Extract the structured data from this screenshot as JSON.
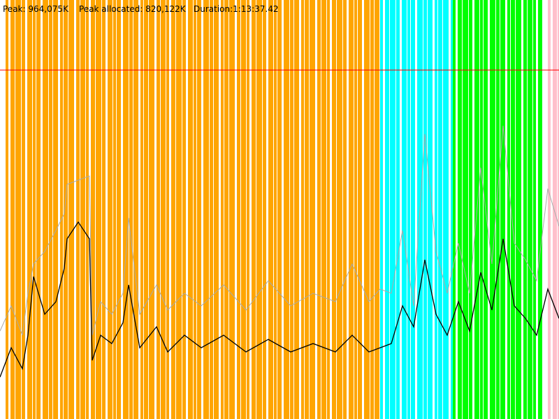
{
  "header": {
    "peak_text": "Peak: 964,075K",
    "peak_allocated_text": "Peak allocated: 820,122K",
    "duration_text": "Duration:1:13:37.42"
  },
  "colors": {
    "background": "#ffffff",
    "phase_orange": "#ffa500",
    "phase_cyan": "#00ffff",
    "phase_green": "#00ff00",
    "phase_pink": "#ffc0cb",
    "limit_line": "#ff0000",
    "heap_total_line": "#aaaaaa",
    "heap_used_line": "#000000"
  },
  "chart_data": {
    "type": "line",
    "title": "",
    "xlabel": "",
    "ylabel": "",
    "x_range": [
      0,
      1
    ],
    "y_range": [
      0,
      1
    ],
    "grid": false,
    "legend": "none",
    "limit_line": 0.833,
    "phases": [
      {
        "name": "orange",
        "start": 0.01,
        "end": 0.68
      },
      {
        "name": "cyan",
        "start": 0.68,
        "end": 0.81
      },
      {
        "name": "green",
        "start": 0.81,
        "end": 0.97
      },
      {
        "name": "pink",
        "start": 0.98,
        "end": 1.0
      }
    ],
    "series": [
      {
        "role": "total",
        "points": [
          [
            0.0,
            0.21
          ],
          [
            0.02,
            0.27
          ],
          [
            0.04,
            0.2
          ],
          [
            0.05,
            0.3
          ],
          [
            0.06,
            0.37
          ],
          [
            0.08,
            0.4
          ],
          [
            0.1,
            0.45
          ],
          [
            0.115,
            0.49
          ],
          [
            0.12,
            0.56
          ],
          [
            0.14,
            0.57
          ],
          [
            0.16,
            0.58
          ],
          [
            0.165,
            0.2
          ],
          [
            0.18,
            0.28
          ],
          [
            0.2,
            0.25
          ],
          [
            0.22,
            0.3
          ],
          [
            0.23,
            0.48
          ],
          [
            0.25,
            0.25
          ],
          [
            0.28,
            0.32
          ],
          [
            0.3,
            0.26
          ],
          [
            0.33,
            0.3
          ],
          [
            0.36,
            0.27
          ],
          [
            0.4,
            0.32
          ],
          [
            0.44,
            0.26
          ],
          [
            0.48,
            0.33
          ],
          [
            0.52,
            0.27
          ],
          [
            0.56,
            0.3
          ],
          [
            0.6,
            0.28
          ],
          [
            0.63,
            0.37
          ],
          [
            0.66,
            0.28
          ],
          [
            0.68,
            0.31
          ],
          [
            0.7,
            0.3
          ],
          [
            0.72,
            0.45
          ],
          [
            0.74,
            0.27
          ],
          [
            0.76,
            0.68
          ],
          [
            0.78,
            0.4
          ],
          [
            0.8,
            0.3
          ],
          [
            0.82,
            0.42
          ],
          [
            0.84,
            0.3
          ],
          [
            0.86,
            0.6
          ],
          [
            0.88,
            0.37
          ],
          [
            0.9,
            0.7
          ],
          [
            0.92,
            0.42
          ],
          [
            0.94,
            0.38
          ],
          [
            0.96,
            0.33
          ],
          [
            0.98,
            0.55
          ],
          [
            1.0,
            0.46
          ]
        ]
      },
      {
        "role": "used",
        "points": [
          [
            0.0,
            0.1
          ],
          [
            0.02,
            0.17
          ],
          [
            0.04,
            0.12
          ],
          [
            0.05,
            0.2
          ],
          [
            0.06,
            0.34
          ],
          [
            0.08,
            0.25
          ],
          [
            0.1,
            0.28
          ],
          [
            0.115,
            0.36
          ],
          [
            0.12,
            0.43
          ],
          [
            0.14,
            0.47
          ],
          [
            0.16,
            0.43
          ],
          [
            0.165,
            0.14
          ],
          [
            0.18,
            0.2
          ],
          [
            0.2,
            0.18
          ],
          [
            0.22,
            0.23
          ],
          [
            0.23,
            0.32
          ],
          [
            0.25,
            0.17
          ],
          [
            0.28,
            0.22
          ],
          [
            0.3,
            0.16
          ],
          [
            0.33,
            0.2
          ],
          [
            0.36,
            0.17
          ],
          [
            0.4,
            0.2
          ],
          [
            0.44,
            0.16
          ],
          [
            0.48,
            0.19
          ],
          [
            0.52,
            0.16
          ],
          [
            0.56,
            0.18
          ],
          [
            0.6,
            0.16
          ],
          [
            0.63,
            0.2
          ],
          [
            0.66,
            0.16
          ],
          [
            0.68,
            0.17
          ],
          [
            0.7,
            0.18
          ],
          [
            0.72,
            0.27
          ],
          [
            0.74,
            0.22
          ],
          [
            0.76,
            0.38
          ],
          [
            0.78,
            0.25
          ],
          [
            0.8,
            0.2
          ],
          [
            0.82,
            0.28
          ],
          [
            0.84,
            0.21
          ],
          [
            0.86,
            0.35
          ],
          [
            0.88,
            0.26
          ],
          [
            0.9,
            0.43
          ],
          [
            0.92,
            0.27
          ],
          [
            0.94,
            0.24
          ],
          [
            0.96,
            0.2
          ],
          [
            0.98,
            0.31
          ],
          [
            1.0,
            0.24
          ]
        ]
      }
    ]
  }
}
